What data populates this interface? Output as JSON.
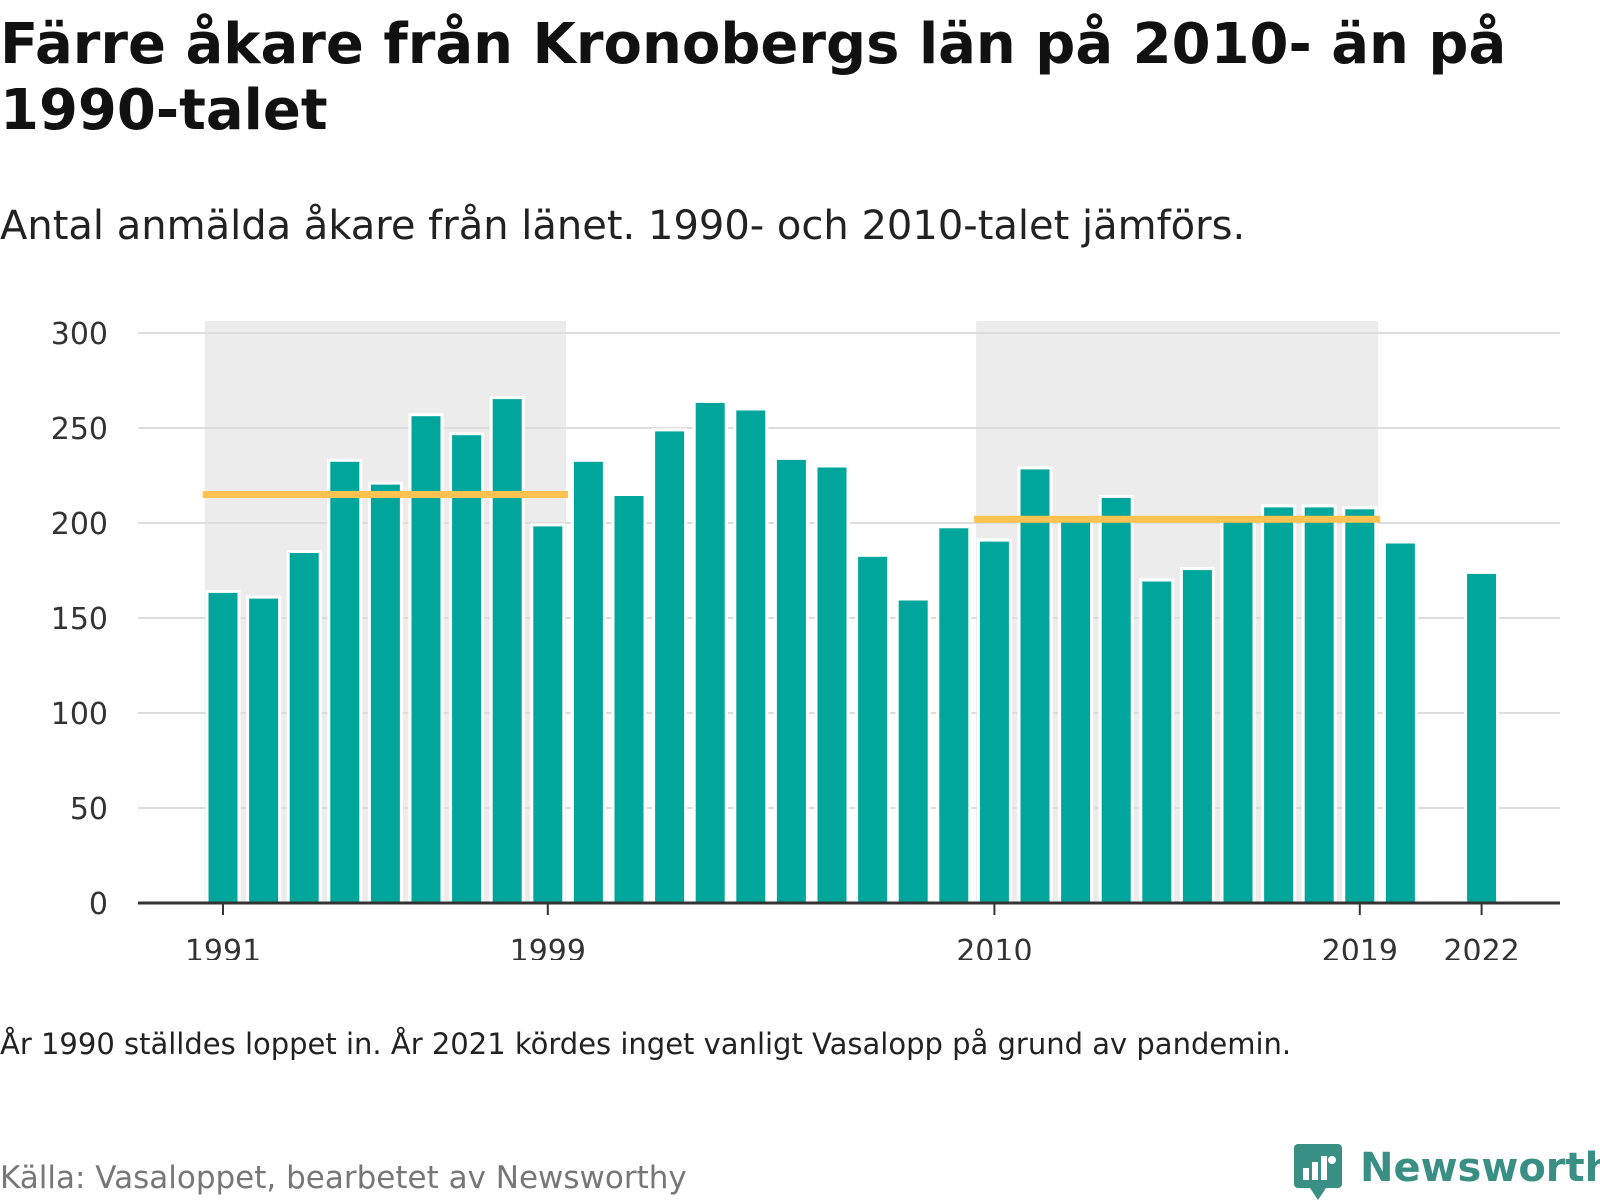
{
  "title": "Färre åkare från Kronobergs län på 2010- än på 1990-talet",
  "subtitle": "Antal anmälda åkare från länet. 1990- och 2010-talet jämförs.",
  "note": "År 1990 ställdes loppet in. År 2021 kördes inget vanligt Vasalopp på grund av pandemin.",
  "source": "Källa: Vasaloppet, bearbetet av Newsworthy",
  "brand": {
    "name": "Newsworthy",
    "icon": "newsworthy-logo-icon"
  },
  "chart_data": {
    "type": "bar",
    "x": [
      1991,
      1992,
      1993,
      1994,
      1995,
      1996,
      1997,
      1998,
      1999,
      2000,
      2001,
      2002,
      2003,
      2004,
      2005,
      2006,
      2007,
      2008,
      2009,
      2010,
      2011,
      2012,
      2013,
      2014,
      2015,
      2016,
      2017,
      2018,
      2019,
      2020,
      2021,
      2022
    ],
    "values": [
      164,
      161,
      185,
      233,
      221,
      257,
      247,
      266,
      199,
      233,
      215,
      249,
      264,
      260,
      234,
      230,
      183,
      160,
      198,
      191,
      229,
      203,
      214,
      170,
      176,
      203,
      209,
      209,
      208,
      190,
      null,
      174
    ],
    "x_ticks": [
      "1991",
      "1999",
      "2010",
      "2019",
      "2022"
    ],
    "y_ticks": [
      "0",
      "50",
      "100",
      "150",
      "200",
      "250",
      "300"
    ],
    "ylim": [
      0,
      300
    ],
    "grid": true,
    "decades": [
      {
        "from": 1991,
        "to": 1999,
        "average": 215
      },
      {
        "from": 2010,
        "to": 2019,
        "average": 202
      }
    ],
    "colors": {
      "bar": "#00a59b",
      "average_line": "#fdc250",
      "decade_band": "#ececec",
      "grid": "#dddddd",
      "axis": "#333333"
    }
  }
}
